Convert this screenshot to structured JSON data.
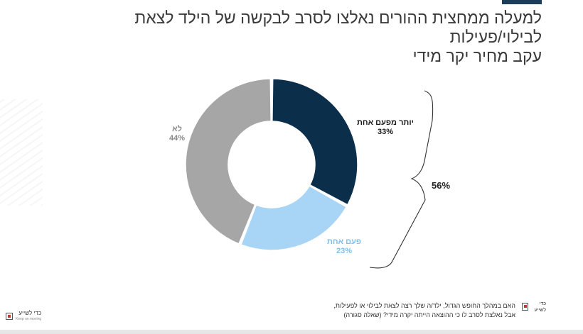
{
  "page": {
    "title_line1": "למעלה ממחצית ההורים נאלצו לסרב לבקשה של הילד לצאת לבילוי/פעילות",
    "title_line2": "עקב מחיר יקר מידי"
  },
  "chart_data": {
    "type": "pie",
    "title": "",
    "donut": true,
    "slices": [
      {
        "label": "יותר מפעם אחת",
        "value": 33,
        "value_label": "33%",
        "color": "#0b2e4a",
        "label_color": "#1a1a1a"
      },
      {
        "label": "פעם אחת",
        "value": 23,
        "value_label": "23%",
        "color": "#a8d4f5",
        "label_color": "#7fbfea"
      },
      {
        "label": "לא",
        "value": 44,
        "value_label": "44%",
        "color": "#a6a6a6",
        "label_color": "#8a8a8a"
      }
    ],
    "bracket": {
      "label": "56%",
      "spans": [
        "יותר מפעם אחת",
        "פעם אחת"
      ]
    }
  },
  "footnote": {
    "line1": "האם במהלך החופש הגדול, ילד/ה שלך רצה לצאת לבילוי או לפעילות,",
    "line2": "אבל נאלצת לסרב לו כי ההוצאה הייתה יקרה מידי? (שאלה סגורה)"
  },
  "logos": {
    "left": "כדי לשייע",
    "left_sub": "Keep on moving",
    "right": "כדי לשייע"
  },
  "colors": {
    "accent": "#1c3d5a",
    "dark_slice": "#0b2e4a",
    "light_slice": "#a8d4f5",
    "grey_slice": "#a6a6a6"
  }
}
